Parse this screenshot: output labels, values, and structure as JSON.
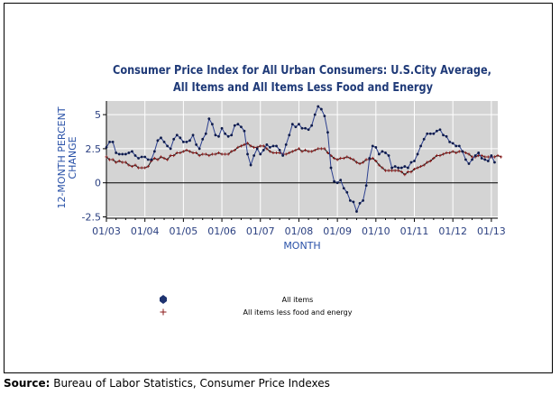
{
  "chart_data": {
    "type": "line",
    "title": "Consumer Price Index for All Urban Consumers: U.S.City Average,",
    "subtitle": "All Items and All Items Less Food and Energy",
    "xlabel": "MONTH",
    "ylabel": "12-MONTH PERCENT CHANGE",
    "ylabel_lines": [
      "12-MONTH PERCENT",
      "CHANGE"
    ],
    "x_ticks": [
      "01/03",
      "01/04",
      "01/05",
      "01/06",
      "01/07",
      "01/08",
      "01/09",
      "01/10",
      "01/11",
      "01/12",
      "01/13"
    ],
    "y_ticks": [
      "-2.5",
      "0",
      "2.5",
      "5"
    ],
    "y_tick_values": [
      -2.5,
      0,
      2.5,
      5
    ],
    "xlim": [
      "2003-01",
      "2013-03"
    ],
    "ylim": [
      -2.6,
      6.0
    ],
    "grid": true,
    "legend_position": "bottom-center",
    "colors": {
      "plot_bg": "#d4d4d4",
      "grid": "#ffffff",
      "all_items_line": "#2b3f8f",
      "all_items_marker": "#0d1a4a",
      "core_line": "#1a1a1a",
      "core_marker": "#8b1a1a",
      "title": "#1f3a78",
      "axis_label": "#2a52a8"
    },
    "series": [
      {
        "name": "All items",
        "marker": "dot",
        "x_start": "2003-01",
        "x_step": "monthly",
        "values": [
          2.6,
          3.0,
          3.0,
          2.2,
          2.1,
          2.1,
          2.1,
          2.2,
          2.3,
          2.0,
          1.8,
          1.9,
          1.9,
          1.7,
          1.7,
          2.3,
          3.1,
          3.3,
          3.0,
          2.7,
          2.5,
          3.2,
          3.5,
          3.3,
          3.0,
          3.0,
          3.1,
          3.5,
          2.8,
          2.5,
          3.2,
          3.6,
          4.7,
          4.3,
          3.5,
          3.4,
          4.0,
          3.6,
          3.4,
          3.5,
          4.2,
          4.3,
          4.1,
          3.8,
          2.1,
          1.3,
          2.0,
          2.5,
          2.1,
          2.4,
          2.8,
          2.6,
          2.7,
          2.7,
          2.4,
          2.0,
          2.8,
          3.5,
          4.3,
          4.1,
          4.3,
          4.0,
          4.0,
          3.9,
          4.2,
          5.0,
          5.6,
          5.4,
          4.9,
          3.7,
          1.1,
          0.1,
          0.0,
          0.2,
          -0.4,
          -0.7,
          -1.3,
          -1.4,
          -2.1,
          -1.5,
          -1.3,
          -0.2,
          1.8,
          2.7,
          2.6,
          2.1,
          2.3,
          2.2,
          2.0,
          1.1,
          1.2,
          1.1,
          1.1,
          1.2,
          1.1,
          1.5,
          1.6,
          2.1,
          2.7,
          3.2,
          3.6,
          3.6,
          3.6,
          3.8,
          3.9,
          3.5,
          3.4,
          3.0,
          2.9,
          2.7,
          2.7,
          2.3,
          1.7,
          1.4,
          1.7,
          2.0,
          2.2,
          1.8,
          1.7,
          1.6,
          2.0,
          1.5
        ],
        "last": "2013-03"
      },
      {
        "name": "All items less food and energy",
        "marker": "plus",
        "x_start": "2003-01",
        "x_step": "monthly",
        "values": [
          1.9,
          1.7,
          1.7,
          1.5,
          1.6,
          1.5,
          1.5,
          1.3,
          1.2,
          1.3,
          1.1,
          1.1,
          1.1,
          1.2,
          1.6,
          1.8,
          1.7,
          1.9,
          1.8,
          1.7,
          2.0,
          2.0,
          2.2,
          2.2,
          2.3,
          2.4,
          2.3,
          2.2,
          2.2,
          2.0,
          2.1,
          2.1,
          2.0,
          2.1,
          2.1,
          2.2,
          2.1,
          2.1,
          2.1,
          2.3,
          2.4,
          2.6,
          2.7,
          2.8,
          2.9,
          2.7,
          2.6,
          2.6,
          2.7,
          2.7,
          2.5,
          2.3,
          2.2,
          2.2,
          2.2,
          2.1,
          2.1,
          2.2,
          2.3,
          2.4,
          2.5,
          2.3,
          2.4,
          2.3,
          2.3,
          2.4,
          2.5,
          2.5,
          2.5,
          2.2,
          2.0,
          1.8,
          1.7,
          1.8,
          1.8,
          1.9,
          1.8,
          1.7,
          1.5,
          1.4,
          1.5,
          1.7,
          1.7,
          1.8,
          1.6,
          1.3,
          1.1,
          0.9,
          0.9,
          0.9,
          0.9,
          0.9,
          0.8,
          0.6,
          0.8,
          0.8,
          1.0,
          1.1,
          1.2,
          1.3,
          1.5,
          1.6,
          1.8,
          2.0,
          2.0,
          2.1,
          2.2,
          2.2,
          2.3,
          2.2,
          2.3,
          2.3,
          2.2,
          2.1,
          1.9,
          1.9,
          2.0,
          2.0,
          1.9,
          1.9,
          1.9,
          1.9,
          2.0,
          1.9
        ]
      }
    ]
  },
  "source": {
    "label": "Source:",
    "text": "Bureau of Labor Statistics, Consumer Price Indexes"
  }
}
